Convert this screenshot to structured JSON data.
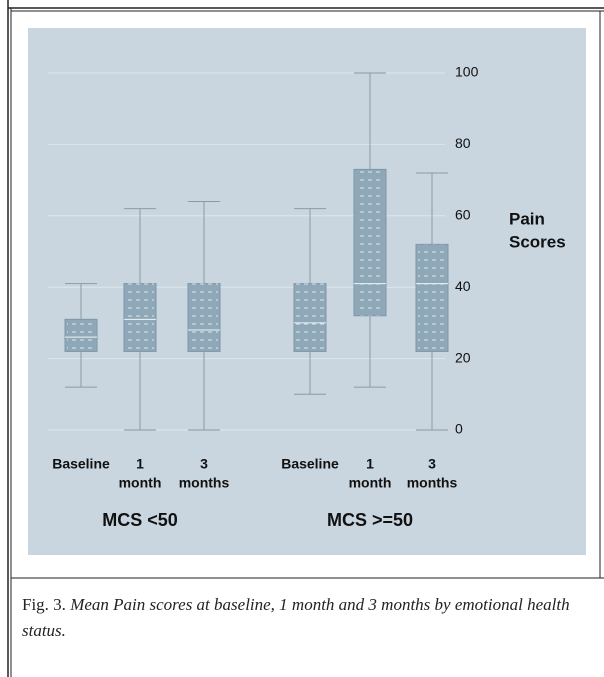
{
  "chart_data": {
    "type": "box",
    "categories": [
      [
        "Baseline"
      ],
      [
        "1",
        "month"
      ],
      [
        "3",
        "months"
      ],
      [
        "Baseline"
      ],
      [
        "1",
        "month"
      ],
      [
        "3",
        "months"
      ]
    ],
    "group_labels": [
      "MCS <50",
      "MCS >=50"
    ],
    "ylabel": [
      "Pain",
      "Scores"
    ],
    "low": [
      12,
      0,
      0,
      10,
      12,
      0
    ],
    "q1": [
      22,
      22,
      22,
      22,
      32,
      22
    ],
    "median": [
      26,
      31,
      28,
      30,
      41,
      41
    ],
    "q3": [
      31,
      41,
      41,
      41,
      73,
      52
    ],
    "high": [
      41,
      62,
      64,
      62,
      100,
      72
    ],
    "color": "#8fa8b8",
    "ylim": [
      0,
      100
    ],
    "yticks": [
      0,
      20,
      40,
      60,
      80,
      100
    ],
    "grid": true
  },
  "caption": {
    "label": "Fig. 3.",
    "text": "Mean Pain scores at baseline, 1 month and 3 months by emotional health status."
  }
}
